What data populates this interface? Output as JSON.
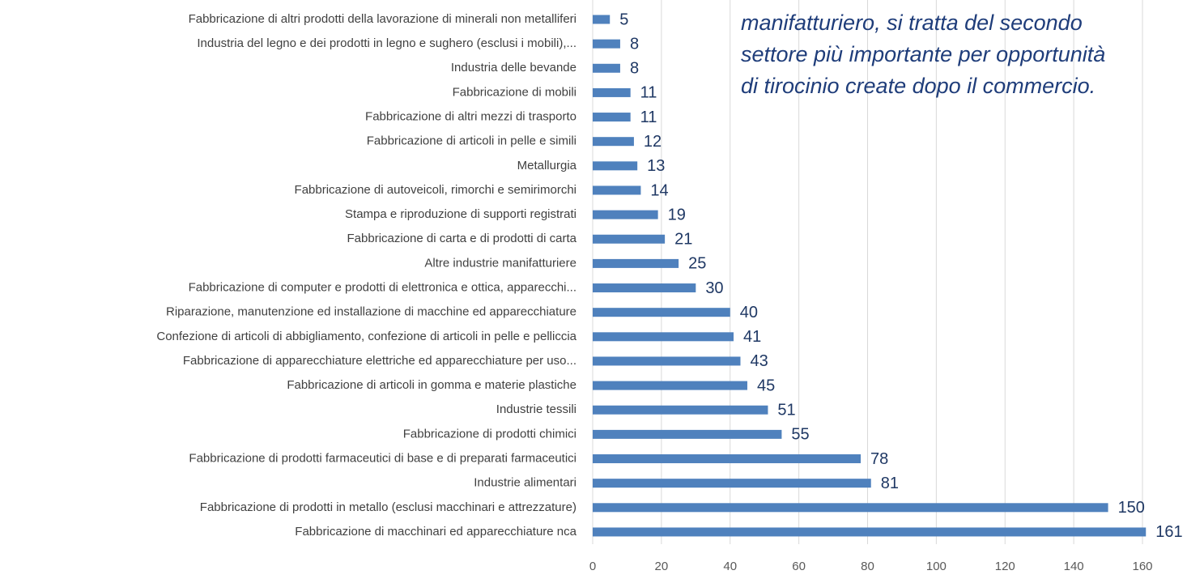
{
  "chart_data": {
    "type": "bar",
    "orientation": "horizontal",
    "annotation": [
      "manifatturiero, si tratta del secondo",
      "settore più importante per opportunità",
      "di tirocinio create dopo il commercio."
    ],
    "categories": [
      "Fabbricazione di altri prodotti della lavorazione di minerali non metalliferi",
      "Industria del legno e dei prodotti in legno e sughero (esclusi i mobili),...",
      "Industria delle bevande",
      "Fabbricazione di mobili",
      "Fabbricazione di altri mezzi di trasporto",
      "Fabbricazione di articoli in pelle e simili",
      "Metallurgia",
      "Fabbricazione di autoveicoli, rimorchi e semirimorchi",
      "Stampa e riproduzione di supporti registrati",
      "Fabbricazione di carta e di prodotti di carta",
      "Altre industrie manifatturiere",
      "Fabbricazione di computer e prodotti di elettronica  e ottica, apparecchi...",
      "Riparazione, manutenzione ed installazione di macchine ed apparecchiature",
      "Confezione di articoli di abbigliamento, confezione di articoli in pelle e pelliccia",
      "Fabbricazione di apparecchiature elettriche ed apparecchiature per uso...",
      "Fabbricazione di articoli in gomma e materie plastiche",
      "Industrie tessili",
      "Fabbricazione di prodotti chimici",
      "Fabbricazione di prodotti farmaceutici di base e di preparati farmaceutici",
      "Industrie alimentari",
      "Fabbricazione di prodotti in metallo (esclusi macchinari e attrezzature)",
      "Fabbricazione di macchinari ed apparecchiature nca"
    ],
    "values": [
      5,
      8,
      8,
      11,
      11,
      12,
      13,
      14,
      19,
      21,
      25,
      30,
      40,
      41,
      43,
      45,
      51,
      55,
      78,
      81,
      150,
      161
    ],
    "color": "#4f81bd",
    "xlim": [
      0,
      160
    ],
    "xticks": [
      0,
      20,
      40,
      60,
      80,
      100,
      120,
      140,
      160
    ],
    "grid": true
  }
}
